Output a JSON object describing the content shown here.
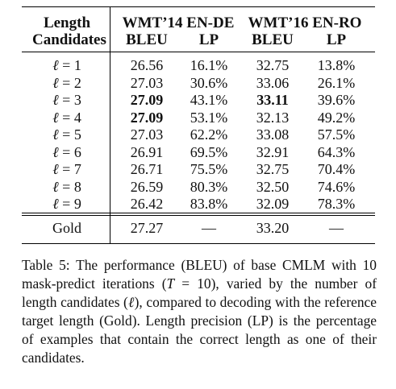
{
  "table": {
    "headers": {
      "length_line1": "Length",
      "length_line2": "Candidates",
      "group_wmt14": "WMT’14 EN-DE",
      "group_wmt16": "WMT’16 EN-RO",
      "bleu": "BLEU",
      "lp": "LP"
    },
    "rows": [
      {
        "ell": "1",
        "en_de_bleu": "26.56",
        "en_de_lp": "16.1%",
        "en_ro_bleu": "32.75",
        "en_ro_lp": "13.8%"
      },
      {
        "ell": "2",
        "en_de_bleu": "27.03",
        "en_de_lp": "30.6%",
        "en_ro_bleu": "33.06",
        "en_ro_lp": "26.1%"
      },
      {
        "ell": "3",
        "en_de_bleu": "27.09",
        "en_de_lp": "43.1%",
        "en_ro_bleu": "33.11",
        "en_ro_lp": "39.6%"
      },
      {
        "ell": "4",
        "en_de_bleu": "27.09",
        "en_de_lp": "53.1%",
        "en_ro_bleu": "32.13",
        "en_ro_lp": "49.2%"
      },
      {
        "ell": "5",
        "en_de_bleu": "27.03",
        "en_de_lp": "62.2%",
        "en_ro_bleu": "33.08",
        "en_ro_lp": "57.5%"
      },
      {
        "ell": "6",
        "en_de_bleu": "26.91",
        "en_de_lp": "69.5%",
        "en_ro_bleu": "32.91",
        "en_ro_lp": "64.3%"
      },
      {
        "ell": "7",
        "en_de_bleu": "26.71",
        "en_de_lp": "75.5%",
        "en_ro_bleu": "32.75",
        "en_ro_lp": "70.4%"
      },
      {
        "ell": "8",
        "en_de_bleu": "26.59",
        "en_de_lp": "80.3%",
        "en_ro_bleu": "32.50",
        "en_ro_lp": "74.6%"
      },
      {
        "ell": "9",
        "en_de_bleu": "26.42",
        "en_de_lp": "83.8%",
        "en_ro_bleu": "32.09",
        "en_ro_lp": "78.3%"
      }
    ],
    "gold": {
      "label": "Gold",
      "en_de_bleu": "27.27",
      "en_de_lp": "—",
      "en_ro_bleu": "33.20",
      "en_ro_lp": "—"
    }
  },
  "caption": {
    "part1": "Table 5: The performance (BLEU) of base CMLM with 10 mask-predict iterations (",
    "T": "T",
    "eq": " = 10",
    "part2": "), varied by the number of length candidates (",
    "ell": "ℓ",
    "part3": "), compared to decoding with the reference target length (Gold). Length precision (LP) is the percentage of examples that contain the correct length as one of their candidates."
  }
}
